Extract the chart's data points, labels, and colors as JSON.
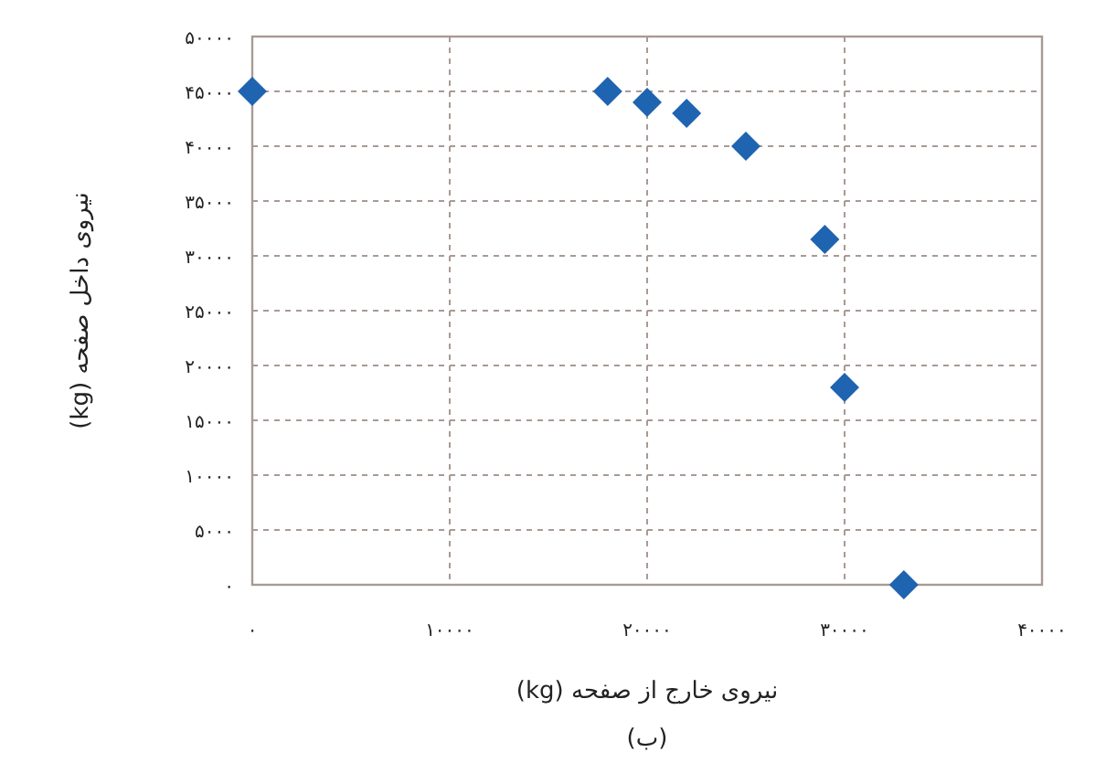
{
  "chart_data": {
    "type": "scatter",
    "xlabel": "نیروی خارج از صفحه (kg)",
    "ylabel": "نیروی داخل صفحه (kg)",
    "annotations": [
      "(ب)"
    ],
    "x": [
      0,
      18000,
      20000,
      22000,
      25000,
      29000,
      30000,
      33000
    ],
    "series": [
      {
        "color": "#1f64b0",
        "values": [
          45000,
          45000,
          44000,
          43000,
          40000,
          31500,
          18000,
          0
        ]
      }
    ],
    "marker": "diamond",
    "grid": true,
    "xlim": [
      0,
      40000
    ],
    "ylim": [
      0,
      50000
    ],
    "xticks": [
      {
        "value": 0,
        "label": "۰"
      },
      {
        "value": 10000,
        "label": "۱۰۰۰۰"
      },
      {
        "value": 20000,
        "label": "۲۰۰۰۰"
      },
      {
        "value": 30000,
        "label": "۳۰۰۰۰"
      },
      {
        "value": 40000,
        "label": "۴۰۰۰۰"
      }
    ],
    "yticks": [
      {
        "value": 0,
        "label": "۰"
      },
      {
        "value": 5000,
        "label": "۵۰۰۰"
      },
      {
        "value": 10000,
        "label": "۱۰۰۰۰"
      },
      {
        "value": 15000,
        "label": "۱۵۰۰۰"
      },
      {
        "value": 20000,
        "label": "۲۰۰۰۰"
      },
      {
        "value": 25000,
        "label": "۲۵۰۰۰"
      },
      {
        "value": 30000,
        "label": "۳۰۰۰۰"
      },
      {
        "value": 35000,
        "label": "۳۵۰۰۰"
      },
      {
        "value": 40000,
        "label": "۴۰۰۰۰"
      },
      {
        "value": 45000,
        "label": "۴۵۰۰۰"
      },
      {
        "value": 50000,
        "label": "۵۰۰۰۰"
      }
    ]
  }
}
